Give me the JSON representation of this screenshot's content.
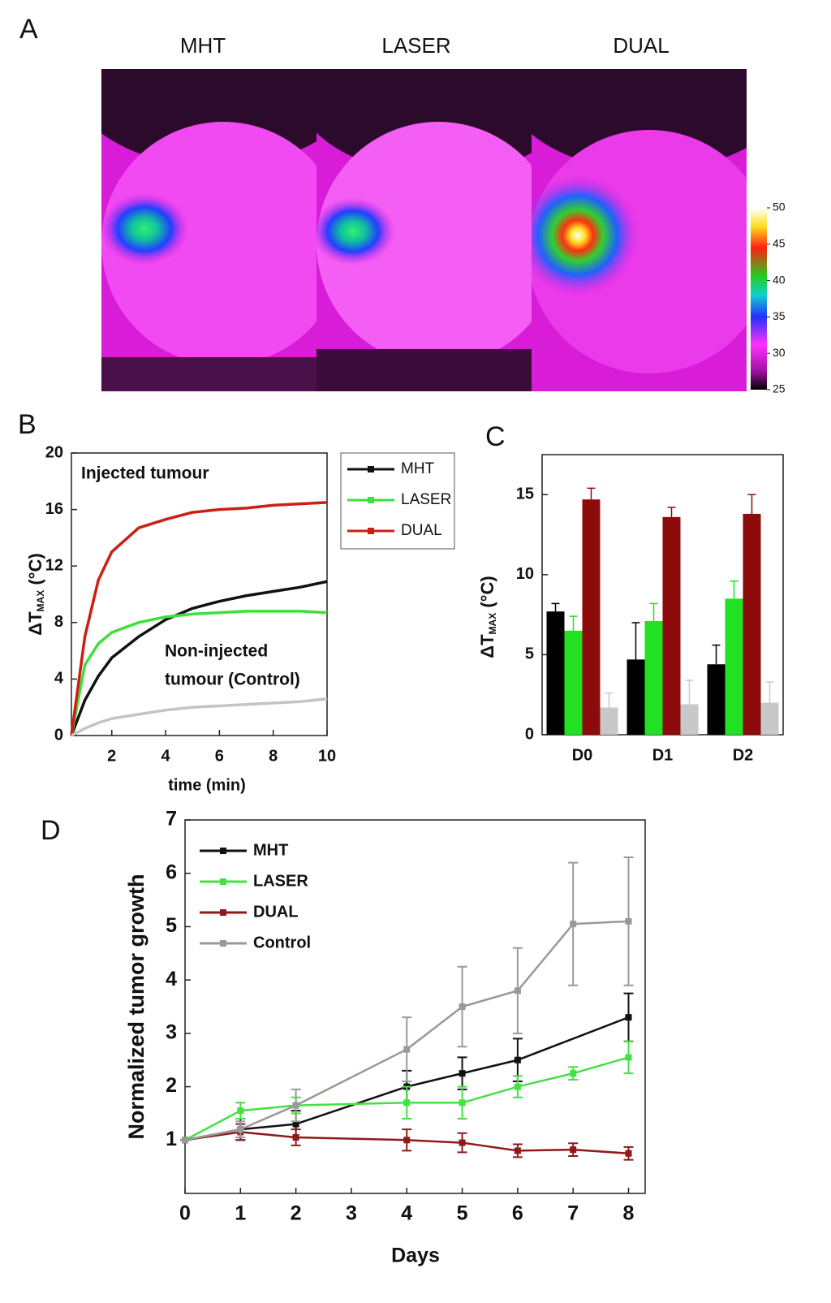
{
  "thermal_images": {
    "panel": "A",
    "titles": [
      "MHT",
      "LASER",
      "DUAL"
    ],
    "colorbar_lim": [
      25,
      50
    ],
    "colorbar_ticks": [
      25,
      30,
      35,
      40,
      45,
      50
    ]
  },
  "chart_data": [
    {
      "type": "line",
      "panel": "B",
      "y_label": "ΔT",
      "y_label_sub": "MAX",
      "y_label_unit": " (°C)",
      "x_label": "time (min)",
      "annotations": [
        [
          "Injected tumour"
        ],
        [
          "Non-injected",
          "tumour (Control)"
        ]
      ],
      "x": [
        0.5,
        1,
        1.5,
        2,
        3,
        4,
        5,
        6,
        7,
        8,
        9,
        10
      ],
      "xlim": [
        0.5,
        10
      ],
      "xticks": [
        2,
        4,
        6,
        8,
        10
      ],
      "ylim": [
        0,
        20
      ],
      "yticks": [
        0,
        4,
        8,
        12,
        16,
        20
      ],
      "legend": "outside-right",
      "series": [
        {
          "name": "MHT",
          "color": "#111111",
          "values": [
            0,
            2.5,
            4.2,
            5.5,
            7,
            8.2,
            9,
            9.5,
            9.9,
            10.2,
            10.5,
            10.9
          ]
        },
        {
          "name": "LASER",
          "color": "#3ee03e",
          "values": [
            0,
            5,
            6.5,
            7.3,
            8,
            8.4,
            8.6,
            8.7,
            8.8,
            8.8,
            8.8,
            8.7
          ]
        },
        {
          "name": "DUAL",
          "color": "#cc1f14",
          "values": [
            0,
            7,
            11,
            13,
            14.7,
            15.3,
            15.8,
            16,
            16.1,
            16.3,
            16.4,
            16.5
          ]
        },
        {
          "color": "#c4c4c4",
          "values": [
            0,
            0.5,
            0.9,
            1.2,
            1.5,
            1.8,
            2.0,
            2.1,
            2.2,
            2.3,
            2.4,
            2.6
          ]
        }
      ]
    },
    {
      "type": "bar",
      "panel": "C",
      "y_label": "ΔT",
      "y_label_sub": "MAX",
      "y_label_unit": " (°C)",
      "categories": [
        "D0",
        "D1",
        "D2"
      ],
      "ylim": [
        0,
        17.5
      ],
      "yticks": [
        0,
        5,
        10,
        15
      ],
      "series": [
        {
          "color": "#000000",
          "values": [
            7.7,
            4.7,
            4.4
          ],
          "errors": [
            0.5,
            2.3,
            1.2
          ]
        },
        {
          "color": "#22e022",
          "values": [
            6.5,
            7.1,
            8.5
          ],
          "errors": [
            0.9,
            1.1,
            1.1
          ]
        },
        {
          "color": "#8e0b0b",
          "values": [
            14.7,
            13.6,
            13.8
          ],
          "errors": [
            0.7,
            0.6,
            1.2
          ]
        },
        {
          "color": "#c8c8c8",
          "values": [
            1.7,
            1.9,
            2.0
          ],
          "errors": [
            0.9,
            1.5,
            1.3
          ]
        }
      ]
    },
    {
      "type": "line",
      "panel": "D",
      "y_label": "Normalized tumor growth",
      "x_label": "Days",
      "xlim": [
        0,
        8.3
      ],
      "xticks": [
        0,
        1,
        2,
        3,
        4,
        5,
        6,
        7,
        8
      ],
      "ylim": [
        0,
        7
      ],
      "yticks": [
        1,
        2,
        3,
        4,
        5,
        6,
        7
      ],
      "legend": "upper-left",
      "series": [
        {
          "name": "MHT",
          "color": "#111111",
          "x": [
            0,
            1,
            2,
            4,
            5,
            6,
            8
          ],
          "values": [
            1,
            1.2,
            1.3,
            2.0,
            2.25,
            2.5,
            3.3
          ],
          "errors": [
            0,
            0.2,
            0.25,
            0.3,
            0.3,
            0.4,
            0.45
          ]
        },
        {
          "name": "LASER",
          "color": "#44e044",
          "x": [
            0,
            1,
            2,
            4,
            5,
            6,
            7,
            8
          ],
          "values": [
            1,
            1.55,
            1.65,
            1.7,
            1.7,
            2.0,
            2.25,
            2.55
          ],
          "errors": [
            0,
            0.15,
            0.15,
            0.3,
            0.3,
            0.2,
            0.12,
            0.3
          ]
        },
        {
          "name": "DUAL",
          "color": "#8e1a1a",
          "x": [
            0,
            1,
            2,
            4,
            5,
            6,
            7,
            8
          ],
          "values": [
            1,
            1.15,
            1.05,
            1.0,
            0.95,
            0.8,
            0.82,
            0.75
          ],
          "errors": [
            0,
            0.15,
            0.15,
            0.2,
            0.18,
            0.12,
            0.12,
            0.12
          ]
        },
        {
          "name": "Control",
          "color": "#999999",
          "x": [
            0,
            1,
            2,
            4,
            5,
            6,
            7,
            8
          ],
          "values": [
            1,
            1.2,
            1.65,
            2.7,
            3.5,
            3.8,
            5.05,
            5.1
          ],
          "errors": [
            0,
            0.15,
            0.3,
            0.6,
            0.75,
            0.8,
            1.15,
            1.2
          ]
        }
      ]
    }
  ]
}
